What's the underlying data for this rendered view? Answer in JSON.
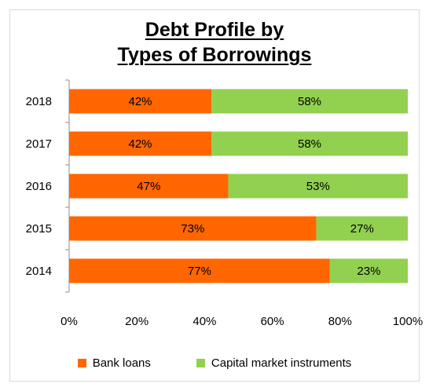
{
  "chart_data": {
    "type": "bar",
    "orientation": "horizontal",
    "stacked": true,
    "title": "Debt Profile by Types of Borrowings",
    "title_lines": [
      "Debt Profile by",
      "Types of Borrowings"
    ],
    "categories": [
      "2018",
      "2017",
      "2016",
      "2015",
      "2014"
    ],
    "series": [
      {
        "name": "Bank loans",
        "color": "#ff6600",
        "values": [
          42,
          42,
          47,
          73,
          77
        ],
        "labels": [
          "42%",
          "42%",
          "47%",
          "73%",
          "77%"
        ]
      },
      {
        "name": "Capital market instruments",
        "color": "#92d050",
        "values": [
          58,
          58,
          53,
          27,
          23
        ],
        "labels": [
          "58%",
          "58%",
          "53%",
          "27%",
          "23%"
        ]
      }
    ],
    "xlim": [
      0,
      100
    ],
    "x_ticks": [
      "0%",
      "20%",
      "40%",
      "60%",
      "80%",
      "100%"
    ],
    "xlabel": "",
    "ylabel": "",
    "grid": false,
    "legend_position": "bottom"
  }
}
